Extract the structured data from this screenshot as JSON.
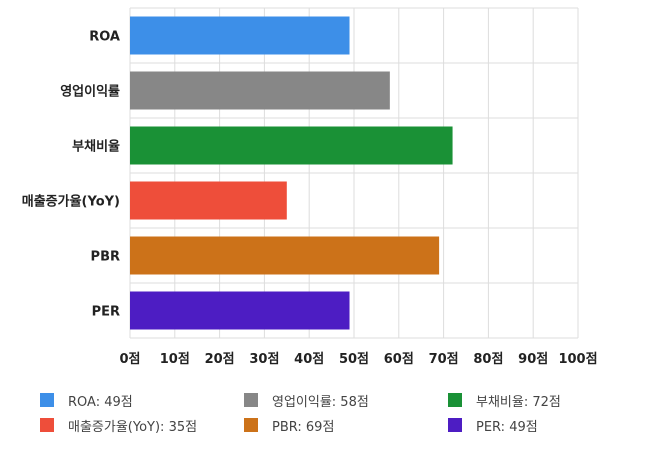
{
  "chart_data": {
    "type": "bar",
    "orientation": "horizontal",
    "categories": [
      "ROA",
      "영업이익률",
      "부채비율",
      "매출증가율(YoY)",
      "PBR",
      "PER"
    ],
    "values": [
      49,
      58,
      72,
      35,
      69,
      49
    ],
    "colors": [
      "#3d8fe8",
      "#878787",
      "#1a9136",
      "#ee4e3a",
      "#cc7219",
      "#4d1dc3"
    ],
    "xlim": [
      0,
      100
    ],
    "x_ticks": [
      0,
      10,
      20,
      30,
      40,
      50,
      60,
      70,
      80,
      90,
      100
    ],
    "tick_suffix": "점",
    "grid": true,
    "legend_position": "bottom",
    "legend": [
      "ROA: 49점",
      "영업이익률: 58점",
      "부채비율: 72점",
      "매출증가율(YoY): 35점",
      "PBR: 69점",
      "PER: 49점"
    ]
  }
}
